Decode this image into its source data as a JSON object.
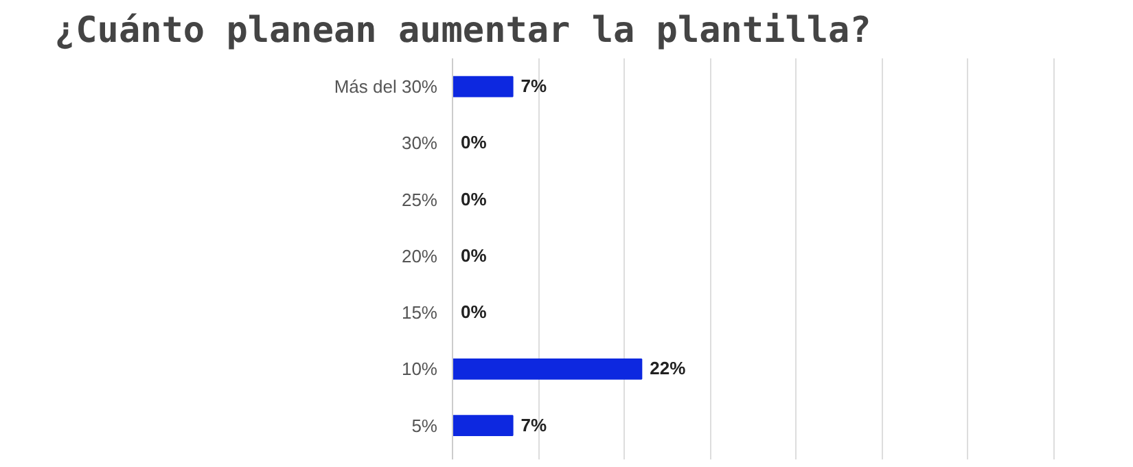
{
  "chart_data": {
    "type": "bar",
    "orientation": "horizontal",
    "title": "¿Cuánto planean aumentar la plantilla?",
    "categories": [
      "Más del 30%",
      "30%",
      "25%",
      "20%",
      "15%",
      "10%",
      "5%"
    ],
    "values": [
      7,
      0,
      0,
      0,
      0,
      22,
      7
    ],
    "value_labels": [
      "7%",
      "0%",
      "0%",
      "0%",
      "0%",
      "22%",
      "7%"
    ],
    "color": "#0d28e0",
    "xlim": [
      0,
      70
    ],
    "xticks": [
      {
        "value": 0,
        "label": null
      },
      {
        "value": 10,
        "label": null
      },
      {
        "value": 20,
        "label": null
      },
      {
        "value": 30,
        "label": null
      },
      {
        "value": 40,
        "label": null
      },
      {
        "value": 50,
        "label": null
      },
      {
        "value": 60,
        "label": null
      },
      {
        "value": 70,
        "label": null
      }
    ],
    "grid": "x",
    "tick_labels": "y"
  }
}
